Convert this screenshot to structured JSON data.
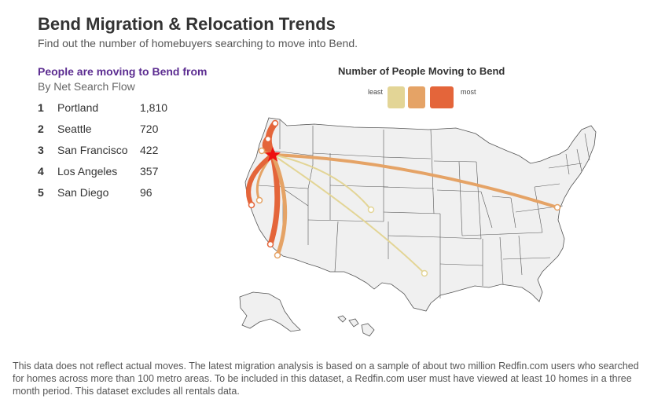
{
  "title": "Bend Migration & Relocation Trends",
  "subtitle": "Find out the number of homebuyers searching to move into Bend.",
  "list": {
    "heading": "People are moving to Bend from",
    "subheading": "By Net Search Flow",
    "items": [
      {
        "rank": "1",
        "city": "Portland",
        "count": "1,810"
      },
      {
        "rank": "2",
        "city": "Seattle",
        "count": "720"
      },
      {
        "rank": "3",
        "city": "San Francisco",
        "count": "422"
      },
      {
        "rank": "4",
        "city": "Los Angeles",
        "count": "357"
      },
      {
        "rank": "5",
        "city": "San Diego",
        "count": "96"
      }
    ]
  },
  "legend": {
    "title": "Number of People Moving to Bend",
    "least": "least",
    "most": "most",
    "colors": [
      "#e3d596",
      "#e5a366",
      "#e4653a"
    ]
  },
  "map": {
    "destination": "Bend",
    "land_color": "#f0f0f0",
    "border_color": "#555555",
    "star_color": "#ee1111"
  },
  "footnote": "This data does not reflect actual moves. The latest migration analysis is based on a sample of about two million Redfin.com users who searched for homes across more than 100 metro areas. To be included in this dataset, a Redfin.com user must have viewed at least 10 homes in a three month period. This dataset excludes all rentals data."
}
